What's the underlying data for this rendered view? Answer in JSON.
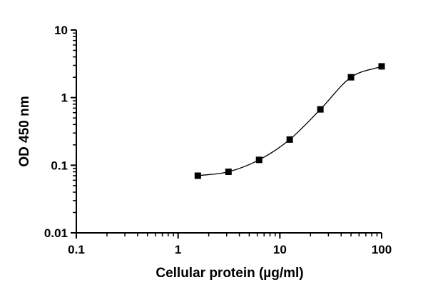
{
  "chart_data": {
    "type": "scatter",
    "title": "",
    "xlabel": "Cellular protein (µg/ml)",
    "ylabel": "OD 450 nm",
    "x_scale": "log",
    "y_scale": "log",
    "xlim": [
      0.1,
      100
    ],
    "ylim": [
      0.01,
      10
    ],
    "x_ticks": [
      "0.1",
      "1",
      "10",
      "100"
    ],
    "y_ticks": [
      "0.01",
      "0.1",
      "1",
      "10"
    ],
    "grid": false,
    "legend": "none",
    "marker_color": "#000000",
    "fit_curve": true,
    "series": [
      {
        "points": [
          {
            "x": 1.5625,
            "y": 0.07
          },
          {
            "x": 3.125,
            "y": 0.08
          },
          {
            "x": 6.25,
            "y": 0.12
          },
          {
            "x": 12.5,
            "y": 0.24
          },
          {
            "x": 25,
            "y": 0.67
          },
          {
            "x": 50,
            "y": 2.0
          },
          {
            "x": 100,
            "y": 2.9
          }
        ]
      }
    ]
  }
}
